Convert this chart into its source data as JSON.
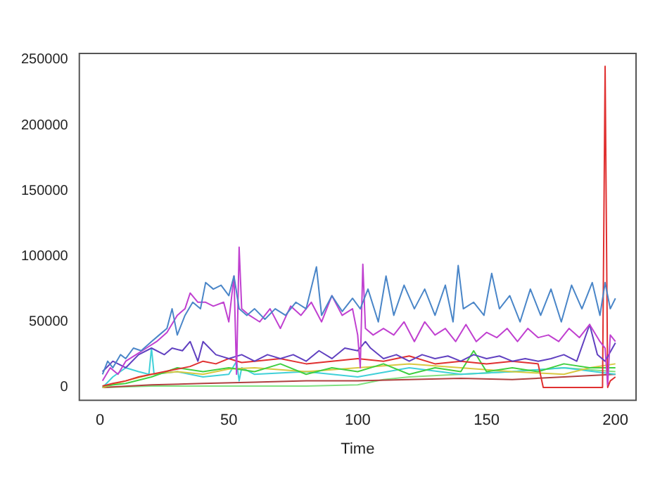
{
  "chart_data": {
    "type": "line",
    "xlabel": "Time",
    "xlim": [
      -8,
      208
    ],
    "xticks": [
      0,
      50,
      100,
      150,
      200
    ],
    "ylim": [
      -9800,
      254800
    ],
    "yticks": [
      0,
      50000,
      100000,
      150000,
      200000,
      250000
    ],
    "grid": false,
    "legend": false,
    "marker": "none",
    "line_style": "solid",
    "series": [
      {
        "color": "#4a86c8",
        "x": [
          1,
          3,
          5,
          8,
          10,
          13,
          16,
          20,
          23,
          26,
          28,
          30,
          33,
          36,
          39,
          41,
          44,
          47,
          50,
          52,
          54,
          57,
          60,
          64,
          68,
          72,
          76,
          80,
          84,
          86,
          90,
          94,
          98,
          101,
          104,
          108,
          111,
          114,
          118,
          122,
          126,
          130,
          134,
          137,
          139,
          141,
          145,
          149,
          152,
          155,
          159,
          163,
          167,
          171,
          175,
          179,
          183,
          187,
          191,
          194,
          196,
          198,
          200
        ],
        "values": [
          10000,
          20000,
          15000,
          25000,
          22000,
          30000,
          28000,
          35000,
          40000,
          45000,
          60000,
          40000,
          55000,
          65000,
          60000,
          80000,
          75000,
          78000,
          70000,
          85000,
          60000,
          55000,
          60000,
          52000,
          60000,
          55000,
          65000,
          60000,
          92000,
          55000,
          70000,
          58000,
          68000,
          60000,
          75000,
          50000,
          85000,
          55000,
          78000,
          60000,
          75000,
          55000,
          78000,
          50000,
          93000,
          60000,
          65000,
          55000,
          87000,
          60000,
          70000,
          50000,
          75000,
          55000,
          75000,
          50000,
          78000,
          60000,
          80000,
          55000,
          80000,
          60000,
          68000
        ]
      },
      {
        "color": "#c040d0",
        "x": [
          1,
          4,
          7,
          10,
          14,
          18,
          22,
          26,
          30,
          33,
          35,
          38,
          41,
          44,
          48,
          50,
          52,
          53,
          54,
          55,
          58,
          62,
          66,
          70,
          74,
          78,
          82,
          86,
          90,
          94,
          98,
          100,
          101,
          102,
          103,
          106,
          110,
          114,
          118,
          122,
          126,
          130,
          134,
          138,
          142,
          146,
          150,
          154,
          158,
          162,
          166,
          170,
          174,
          178,
          182,
          186,
          190,
          194,
          196,
          197,
          198,
          200
        ],
        "values": [
          5000,
          15000,
          10000,
          20000,
          25000,
          30000,
          35000,
          42000,
          55000,
          60000,
          72000,
          65000,
          65000,
          62000,
          65000,
          50000,
          85000,
          10000,
          107000,
          60000,
          55000,
          50000,
          60000,
          45000,
          62000,
          55000,
          65000,
          50000,
          70000,
          55000,
          60000,
          40000,
          15000,
          94000,
          45000,
          40000,
          45000,
          40000,
          50000,
          35000,
          50000,
          40000,
          45000,
          35000,
          48000,
          35000,
          42000,
          38000,
          45000,
          35000,
          45000,
          38000,
          40000,
          35000,
          45000,
          38000,
          48000,
          35000,
          30000,
          2000,
          40000,
          35000
        ]
      },
      {
        "color": "#6040c0",
        "x": [
          1,
          5,
          10,
          15,
          20,
          25,
          28,
          32,
          35,
          38,
          40,
          45,
          50,
          55,
          60,
          65,
          70,
          75,
          80,
          85,
          90,
          95,
          100,
          103,
          105,
          110,
          115,
          120,
          125,
          130,
          135,
          140,
          145,
          150,
          155,
          160,
          165,
          170,
          175,
          180,
          185,
          190,
          193,
          196,
          200
        ],
        "values": [
          12000,
          20000,
          15000,
          25000,
          30000,
          25000,
          30000,
          28000,
          35000,
          20000,
          35000,
          25000,
          22000,
          25000,
          20000,
          25000,
          22000,
          25000,
          20000,
          28000,
          22000,
          30000,
          28000,
          35000,
          30000,
          22000,
          25000,
          20000,
          25000,
          22000,
          24000,
          20000,
          25000,
          22000,
          24000,
          20000,
          22000,
          20000,
          22000,
          25000,
          20000,
          48000,
          25000,
          20000,
          34000
        ]
      },
      {
        "color": "#e03030",
        "x": [
          1,
          5,
          10,
          15,
          20,
          25,
          30,
          35,
          40,
          45,
          50,
          55,
          60,
          70,
          80,
          90,
          100,
          110,
          120,
          130,
          140,
          150,
          160,
          170,
          172,
          194,
          195,
          196,
          197,
          198,
          200
        ],
        "values": [
          1000,
          3000,
          5000,
          8000,
          10000,
          12000,
          14000,
          16000,
          20000,
          18000,
          22000,
          19000,
          20000,
          22000,
          18000,
          20000,
          22000,
          20000,
          24000,
          18000,
          20000,
          18000,
          20000,
          18000,
          0,
          0,
          0,
          245000,
          0,
          5000,
          8000
        ]
      },
      {
        "color": "#40d040",
        "x": [
          1,
          10,
          20,
          30,
          40,
          50,
          60,
          70,
          80,
          90,
          100,
          110,
          120,
          130,
          140,
          145,
          150,
          160,
          170,
          180,
          190,
          200
        ],
        "values": [
          1000,
          3000,
          8000,
          15000,
          12000,
          15000,
          12000,
          18000,
          10000,
          15000,
          12000,
          18000,
          10000,
          15000,
          12000,
          28000,
          12000,
          15000,
          12000,
          18000,
          15000,
          15000
        ]
      },
      {
        "color": "#d8c840",
        "x": [
          1,
          10,
          20,
          30,
          40,
          50,
          60,
          80,
          100,
          120,
          140,
          160,
          180,
          190,
          200
        ],
        "values": [
          0,
          5000,
          10000,
          12000,
          10000,
          14000,
          15000,
          12000,
          15000,
          18000,
          15000,
          12000,
          10000,
          15000,
          18000
        ]
      },
      {
        "color": "#40d0d8",
        "x": [
          1,
          5,
          10,
          15,
          19,
          20,
          21,
          30,
          40,
          50,
          53,
          54,
          55,
          60,
          80,
          100,
          120,
          140,
          160,
          180,
          200
        ],
        "values": [
          0,
          8000,
          15000,
          12000,
          10000,
          30000,
          10000,
          12000,
          8000,
          10000,
          20000,
          5000,
          15000,
          10000,
          12000,
          8000,
          15000,
          10000,
          12000,
          15000,
          10000
        ]
      },
      {
        "color": "#b04040",
        "x": [
          1,
          20,
          40,
          60,
          80,
          100,
          120,
          140,
          160,
          180,
          200
        ],
        "values": [
          0,
          2000,
          3000,
          4000,
          5000,
          5000,
          6000,
          7000,
          6000,
          8000,
          10000
        ]
      },
      {
        "color": "#80e080",
        "x": [
          1,
          20,
          40,
          60,
          80,
          100,
          110,
          120,
          140,
          160,
          180,
          200
        ],
        "values": [
          0,
          1000,
          1000,
          1000,
          1000,
          2000,
          6000,
          8000,
          10000,
          12000,
          15000,
          12000
        ]
      }
    ]
  }
}
